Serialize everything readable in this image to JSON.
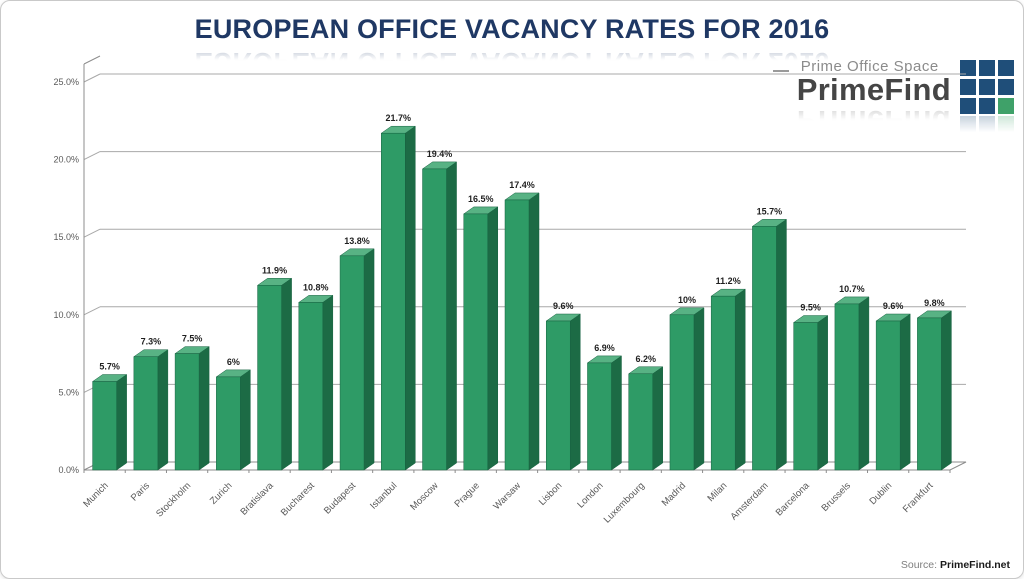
{
  "page": {
    "title": "EUROPEAN OFFICE VACANCY RATES FOR 2016",
    "source_prefix": "Source:",
    "source_name": "PrimeFind.net"
  },
  "logo": {
    "tagline": "Prime Office Space",
    "brand": "PrimeFind",
    "grid": {
      "rows": 3,
      "cols": 3,
      "square_color": "#1F4E79",
      "accent_color": "#3FA169",
      "accent_index": 8
    }
  },
  "colors": {
    "title": "#1F3864",
    "bar_front": "#2E9B66",
    "bar_side": "#1C6B45",
    "bar_top": "#58B284",
    "bar_stroke": "#176241",
    "gridline": "#a8a8a8",
    "axis": "#8c8c8c"
  },
  "chart_data": {
    "type": "bar",
    "title": "EUROPEAN OFFICE VACANCY RATES FOR 2016",
    "categories": [
      "Munich",
      "Paris",
      "Stockholm",
      "Zurich",
      "Bratislava",
      "Bucharest",
      "Budapest",
      "Istanbul",
      "Moscow",
      "Prague",
      "Warsaw",
      "Lisbon",
      "London",
      "Luxembourg",
      "Madrid",
      "Milan",
      "Amsterdam",
      "Barcelona",
      "Brussels",
      "Dublin",
      "Frankfurt"
    ],
    "values": [
      5.7,
      7.3,
      7.5,
      6,
      11.9,
      10.8,
      13.8,
      21.7,
      19.4,
      16.5,
      17.4,
      9.6,
      6.9,
      6.2,
      10,
      11.2,
      15.7,
      9.5,
      10.7,
      9.6,
      9.8
    ],
    "value_labels": [
      "5.7%",
      "7.3%",
      "7.5%",
      "6%",
      "11.9%",
      "10.8%",
      "13.8%",
      "21.7%",
      "19.4%",
      "16.5%",
      "17.4%",
      "9.6%",
      "6.9%",
      "6.2%",
      "10%",
      "11.2%",
      "15.7%",
      "9.5%",
      "10.7%",
      "9.6%",
      "9.8%"
    ],
    "xlabel": "",
    "ylabel": "",
    "ylim": [
      0,
      25
    ],
    "ytick_values": [
      0,
      5,
      10,
      15,
      20,
      25
    ],
    "ytick_labels": [
      "0.0%",
      "5.0%",
      "10.0%",
      "15.0%",
      "20.0%",
      "25.0%"
    ],
    "grid": true,
    "legend": "none",
    "style": "3d-column"
  }
}
